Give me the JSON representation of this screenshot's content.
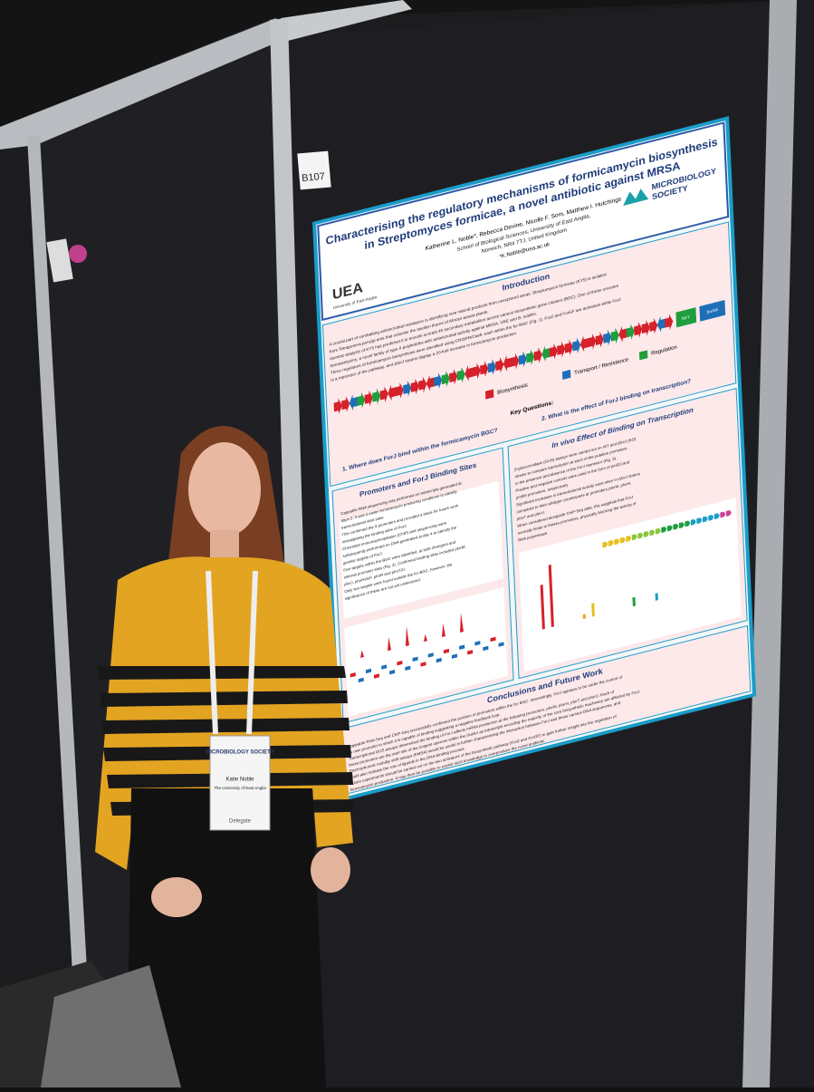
{
  "booth_sign": {
    "number": "B107"
  },
  "poster": {
    "title": [
      "Characterising the regulatory mechanisms of formicamycin biosynthesis",
      "in Streptomyces formicae, a novel antibiotic against MRSA"
    ],
    "authors": "Katherine L. Noble*, Rebecca Devine, Nicolle F. Som, Matthew I. Hutchings",
    "affiliation": [
      "School of Biological Sciences, University of East Anglia,",
      "Norwich, NR4 7TJ, United Kingdom"
    ],
    "email": "*K.Noble@uea.ac.uk",
    "logos": {
      "uea": "UEA",
      "uea_sub": "University of East Anglia",
      "society": [
        "MICROBIOLOGY",
        "SOCIETY"
      ]
    },
    "introduction": {
      "heading": "Introduction",
      "text": [
        "A crucial part of combatting antimicrobial resistance is identifying new natural products from unexplored areas. Streptomyces formicae (KY5) is isolated",
        "from Tetraponera penzigi ants that colonise the swollen thorns of African acacia plants.",
        "Genetic analysis of KY5 has predicted it to encode at least 45 secondary metabolites across various biosynthetic gene clusters (BGC). One of these encodes",
        "formicamycins, a novel family of type II polyketides with antimicrobial activity against MRSA, VRE and B. subtilis.",
        "Three regulators of formicamycin biosynthesis were identified using CRISPR/Cas9, each within the for BGC (Fig. 1). ForZ and ForGF are activators while ForJ",
        "is a repressor of the pathway, and ΔforJ strains display a 20-fold increase in formicamycin production."
      ],
      "genes": [
        "forY",
        "forAA"
      ],
      "legend": [
        "Biosynthesis",
        "Transport / Resistance",
        "Regulation"
      ],
      "key_questions": {
        "heading": "Key Questions:",
        "items": [
          "1. Where does ForJ bind within the formicamycin BGC?",
          "2. What is the effect of ForJ binding on transcription?"
        ]
      }
    },
    "promoters": {
      "heading": "Promoters and ForJ Binding Sites",
      "text": [
        "Cappable RNA sequencing was performed on transcripts generated at",
        "days 2, 3 and 4 under formicamycin producing conditions to identify",
        "transcriptional start sites.",
        "This confirmed the 9 promoters and provided a basis for future work",
        "investigating the binding sites of ForJ.",
        "Chromatin immunoprecipitation (ChIP) and sequencing were",
        "subsequently performed on DNA generated at day 4 to identify the",
        "genetic targets of ForJ.",
        "Five targets within the BGC were identified, at both divergent and",
        "internal promoter sites (Fig. 2). Confirmed binding sites included pforM,",
        "pforJ, pforHI/GF, pforR and pforT/U.",
        "Only two targets were found outside the for BGC, however, the",
        "significance of these are not yet understood."
      ]
    },
    "in_vivo": {
      "heading": "In vivo Effect of Binding on Transcription",
      "text": [
        "β-glucuronidase (GUS) assays were carried out on WT and ΔforJ (KO)",
        "strains to compare transcription at each of the putative promoters",
        "in the presence and absence of the ForJ repressor (Fig. 3).",
        "Positive and negative controls were used in the form of pmf23 and",
        "pmf56 promoters, respectively.",
        "Significant increases in transcriptional activity were seen in ΔforJ strains",
        "compared to their wildtype counterparts at promoters pforM, pforH,",
        "pforT and pforU.",
        "When considered alongside ChIP-Seq data, this suggests that ForJ",
        "normally binds to theses promoters, physically blocking the activity of",
        "RNA polymerase."
      ]
    },
    "conclusions": {
      "heading": "Conclusions and Future Work",
      "text": [
        "Cappable RNA-Seq and ChIP-Seq successfully confirmed the position of promoters within the for BGC. Interestingly, ForJ appears to be under the control of",
        "its own promoter to which it is capable of binding suggesting a negative feedback loop.",
        "Transcriptional GUS assays determined the binding of ForJ affects mRNA production at the following promoters, pforM, pforH, pforT and pforU. Each of",
        "these promoters are the start site of the longest operons within the cluster as transcripts encoding the majority of the core biosynthetic machinery are affected by ForJ.",
        "Electrophoretic mobility shift assays (EMSA) would be useful in further characterising the interaction between ForJ and these various DNA sequences, and",
        "could also indicate the role of ligands in the DNA-binding process.",
        "Future experiments should be carried out on the two activators of the biosynthetic pathway (ForZ and ForGF) to gain further insight into the regulation of",
        "formicamycin production. It may then be possible to exploit such knowledge to overproduce the novel antibiotic."
      ]
    }
  },
  "badge": {
    "society": "MICROBIOLOGY SOCIETY",
    "name": "Katie Noble",
    "institution": "The University of East Anglia",
    "role": "Delegate"
  }
}
